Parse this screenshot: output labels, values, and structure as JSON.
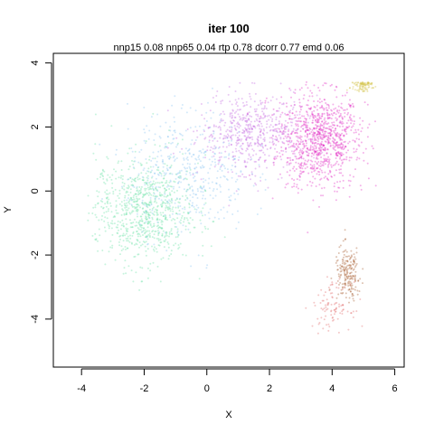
{
  "chart_data": {
    "type": "scatter",
    "title": "iter 100",
    "subtitle": "nnp15 0.08 nnp65 0.04 rtp 0.78 dcorr 0.77 emd 0.06",
    "xlabel": "X",
    "ylabel": "Y",
    "xlim": [
      -4.9,
      6.3
    ],
    "ylim": [
      -5.5,
      4.3
    ],
    "xticks": [
      -4,
      -2,
      0,
      2,
      4,
      6
    ],
    "yticks": [
      -4,
      -2,
      0,
      2,
      4
    ],
    "grid": false,
    "legend": "none",
    "point_style": "tiny semi-transparent dots",
    "clusters": [
      {
        "color": "#e020c0",
        "center": [
          3.6,
          1.6
        ],
        "spread": [
          1.1,
          1.2
        ],
        "weight": 0.3
      },
      {
        "color": "#c060e0",
        "center": [
          1.4,
          1.8
        ],
        "spread": [
          1.4,
          1.0
        ],
        "weight": 0.18
      },
      {
        "color": "#60e0a0",
        "center": [
          -2.0,
          -0.6
        ],
        "spread": [
          1.3,
          1.4
        ],
        "weight": 0.26
      },
      {
        "color": "#80c0f0",
        "center": [
          -0.6,
          0.6
        ],
        "spread": [
          1.6,
          1.6
        ],
        "weight": 0.14
      },
      {
        "color": "#a05020",
        "center": [
          4.5,
          -2.6
        ],
        "spread": [
          0.35,
          0.7
        ],
        "weight": 0.06
      },
      {
        "color": "#e06060",
        "center": [
          4.0,
          -3.6
        ],
        "spread": [
          0.5,
          0.6
        ],
        "weight": 0.03
      },
      {
        "color": "#d0c040",
        "center": [
          5.0,
          3.4
        ],
        "spread": [
          0.3,
          0.15
        ],
        "weight": 0.03
      }
    ]
  }
}
